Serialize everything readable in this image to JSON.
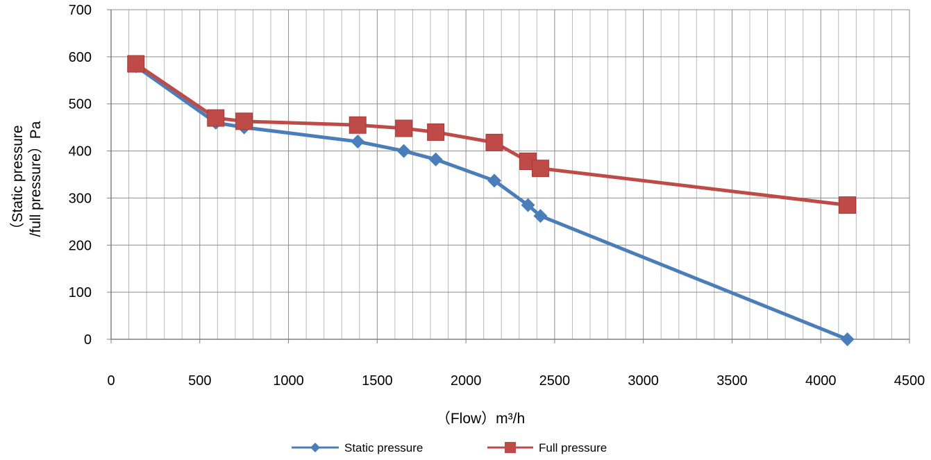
{
  "chart_data": {
    "type": "line",
    "xlabel": "（Flow）m³/h",
    "ylabel_lines": [
      "（Static pressure",
      "/full pressure）Pa"
    ],
    "xlim": [
      0,
      4500
    ],
    "ylim": [
      0,
      700
    ],
    "x_ticks": [
      0,
      500,
      1000,
      1500,
      2000,
      2500,
      3000,
      3500,
      4000,
      4500
    ],
    "y_ticks": [
      0,
      100,
      200,
      300,
      400,
      500,
      600,
      700
    ],
    "x_minor_step": 100,
    "grid": true,
    "legend_position": "bottom",
    "series": [
      {
        "name": "Static pressure",
        "color": "#4A7EBB",
        "marker": "diamond",
        "points": [
          [
            140,
            580
          ],
          [
            590,
            460
          ],
          [
            750,
            450
          ],
          [
            1390,
            420
          ],
          [
            1650,
            400
          ],
          [
            1830,
            382
          ],
          [
            2160,
            337
          ],
          [
            2350,
            285
          ],
          [
            2420,
            262
          ],
          [
            4150,
            0
          ]
        ]
      },
      {
        "name": "Full pressure",
        "color": "#BE4B48",
        "marker": "square",
        "points": [
          [
            140,
            585
          ],
          [
            590,
            470
          ],
          [
            750,
            463
          ],
          [
            1390,
            455
          ],
          [
            1650,
            448
          ],
          [
            1830,
            440
          ],
          [
            2160,
            418
          ],
          [
            2350,
            378
          ],
          [
            2420,
            363
          ],
          [
            4150,
            285
          ]
        ]
      }
    ]
  }
}
